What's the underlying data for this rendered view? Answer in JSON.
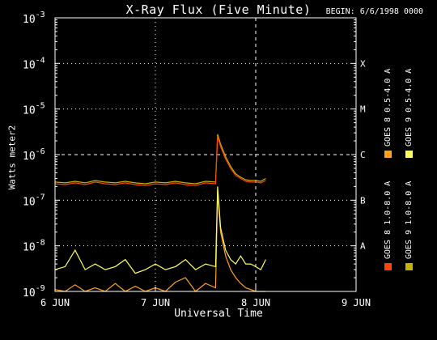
{
  "chart_data": {
    "type": "line",
    "title": "X-Ray Flux (Five Minute)",
    "begin_label": "BEGIN: 6/6/1998 0000",
    "ylabel": "Watts meter2",
    "xlabel": "Universal Time",
    "yscale": "log",
    "ylim": [
      1e-09,
      0.001
    ],
    "y_ticks": [
      {
        "value": 1e-09,
        "mant": "10",
        "exp": "-9"
      },
      {
        "value": 1e-08,
        "mant": "10",
        "exp": "-8"
      },
      {
        "value": 1e-07,
        "mant": "10",
        "exp": "-7"
      },
      {
        "value": 1e-06,
        "mant": "10",
        "exp": "-6"
      },
      {
        "value": 1e-05,
        "mant": "10",
        "exp": "-5"
      },
      {
        "value": 0.0001,
        "mant": "10",
        "exp": "-4"
      },
      {
        "value": 0.001,
        "mant": "10",
        "exp": "-3"
      }
    ],
    "x_ticks": [
      {
        "day": 0,
        "label": "6 JUN"
      },
      {
        "day": 1,
        "label": "7 JUN"
      },
      {
        "day": 2,
        "label": "8 JUN"
      },
      {
        "day": 3,
        "label": "9 JUN"
      }
    ],
    "xlim_days": [
      0,
      3
    ],
    "flare_classes": [
      {
        "label": "A",
        "value": 1e-08
      },
      {
        "label": "B",
        "value": 1e-07
      },
      {
        "label": "C",
        "value": 1e-06
      },
      {
        "label": "M",
        "value": 1e-05
      },
      {
        "label": "X",
        "value": 0.0001
      }
    ],
    "grid": "dotted at 1e-8, 1e-7, 1e-6, 1e-5, 1e-4; dashed at 1e-6 and day boundaries",
    "series": [
      {
        "name": "GOES 8  1.0-8.0 A",
        "color": "#ff4500",
        "x": [
          0,
          0.1,
          0.2,
          0.3,
          0.4,
          0.5,
          0.6,
          0.7,
          0.8,
          0.9,
          1.0,
          1.1,
          1.2,
          1.3,
          1.4,
          1.5,
          1.6,
          1.62,
          1.65,
          1.7,
          1.75,
          1.8,
          1.85,
          1.9,
          1.95,
          2.0,
          2.05,
          2.1
        ],
        "y": [
          2.3e-07,
          2.2e-07,
          2.4e-07,
          2.2e-07,
          2.5e-07,
          2.3e-07,
          2.2e-07,
          2.4e-07,
          2.2e-07,
          2.1e-07,
          2.3e-07,
          2.2e-07,
          2.4e-07,
          2.2e-07,
          2.1e-07,
          2.4e-07,
          2.3e-07,
          2.5e-06,
          1.5e-06,
          8e-07,
          5e-07,
          3.5e-07,
          3e-07,
          2.6e-07,
          2.5e-07,
          2.5e-07,
          2.4e-07,
          2.7e-07
        ]
      },
      {
        "name": "GOES 8  0.5-4.0 A",
        "color": "#ffa020",
        "x": [
          0,
          0.1,
          0.2,
          0.3,
          0.4,
          0.5,
          0.6,
          0.7,
          0.8,
          0.9,
          1.0,
          1.1,
          1.2,
          1.3,
          1.4,
          1.5,
          1.6,
          1.62,
          1.65,
          1.7,
          1.75,
          1.8,
          1.85,
          1.9,
          1.95,
          2.0,
          2.05,
          2.1
        ],
        "y": [
          1.1e-09,
          1e-09,
          1.4e-09,
          1e-09,
          1.2e-09,
          1e-09,
          1.5e-09,
          1e-09,
          1.3e-09,
          1e-09,
          1.2e-09,
          1e-09,
          1.6e-09,
          2e-09,
          1e-09,
          1.5e-09,
          1.2e-09,
          1.5e-07,
          2e-08,
          6e-09,
          3e-09,
          2e-09,
          1.5e-09,
          1.2e-09,
          1.1e-09,
          1e-09,
          1e-09,
          1e-09
        ]
      },
      {
        "name": "GOES 9  1.0-8.0 A",
        "color": "#c8b400",
        "x": [
          0,
          0.1,
          0.2,
          0.3,
          0.4,
          0.5,
          0.6,
          0.7,
          0.8,
          0.9,
          1.0,
          1.1,
          1.2,
          1.3,
          1.4,
          1.5,
          1.6,
          1.62,
          1.65,
          1.7,
          1.75,
          1.8,
          1.85,
          1.9,
          1.95,
          2.0,
          2.05,
          2.1
        ],
        "y": [
          2.5e-07,
          2.4e-07,
          2.6e-07,
          2.4e-07,
          2.7e-07,
          2.5e-07,
          2.4e-07,
          2.6e-07,
          2.4e-07,
          2.3e-07,
          2.5e-07,
          2.4e-07,
          2.6e-07,
          2.4e-07,
          2.3e-07,
          2.6e-07,
          2.5e-07,
          2.8e-06,
          1.7e-06,
          9e-07,
          5.5e-07,
          3.8e-07,
          3.2e-07,
          2.8e-07,
          2.7e-07,
          2.7e-07,
          2.6e-07,
          3e-07
        ]
      },
      {
        "name": "GOES 9  0.5-4.0 A",
        "color": "#ffff60",
        "x": [
          0,
          0.1,
          0.2,
          0.3,
          0.4,
          0.5,
          0.6,
          0.7,
          0.8,
          0.9,
          1.0,
          1.1,
          1.2,
          1.3,
          1.4,
          1.5,
          1.6,
          1.62,
          1.65,
          1.7,
          1.75,
          1.8,
          1.85,
          1.9,
          1.95,
          2.0,
          2.05,
          2.1
        ],
        "y": [
          3e-09,
          3.5e-09,
          8e-09,
          3e-09,
          4e-09,
          3e-09,
          3.5e-09,
          5e-09,
          2.5e-09,
          3e-09,
          4e-09,
          3e-09,
          3.5e-09,
          5e-09,
          3e-09,
          4e-09,
          3.5e-09,
          2e-07,
          2.5e-08,
          8e-09,
          5e-09,
          4e-09,
          6e-09,
          4e-09,
          4e-09,
          3.5e-09,
          3e-09,
          5e-09
        ]
      }
    ]
  }
}
